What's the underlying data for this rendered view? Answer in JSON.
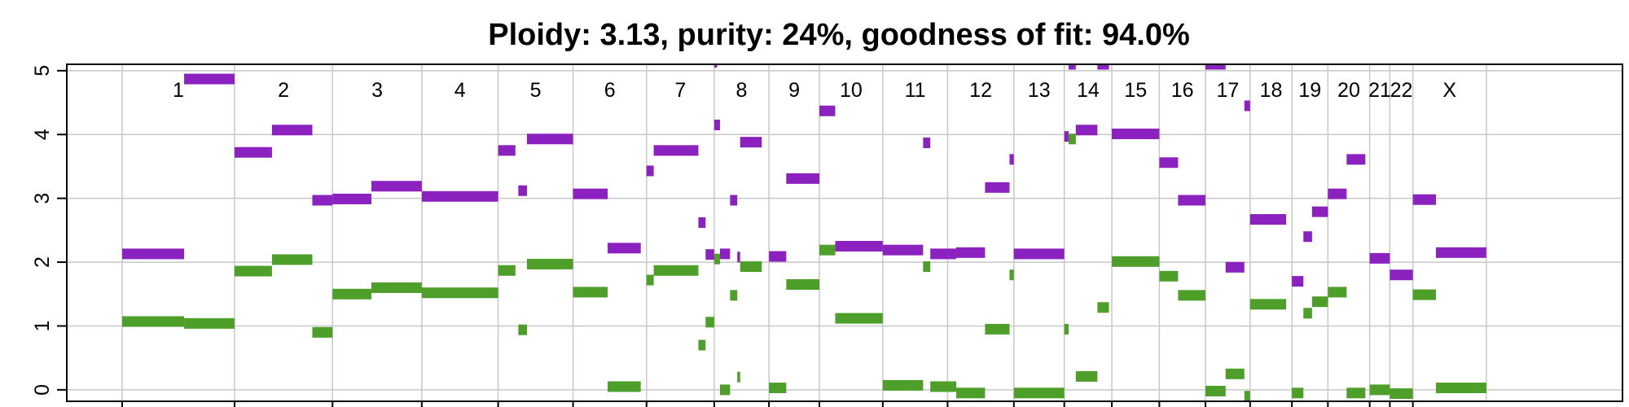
{
  "chart_data": {
    "type": "segment",
    "title": "Ploidy: 3.13, purity: 24%, goodness of fit: 94.0%",
    "xlabel": "",
    "ylabel": "",
    "ylim": [
      -0.18,
      5.1
    ],
    "y_ticks": [
      0,
      1,
      2,
      3,
      4,
      5
    ],
    "grid": true,
    "colors": {
      "major": "#8b22c0",
      "minor": "#4e9e2a",
      "grid": "#c8c8c8",
      "axis": "#000000"
    },
    "chromosomes": [
      {
        "name": "1",
        "start": 0.0,
        "end": 0.078
      },
      {
        "name": "2",
        "start": 0.078,
        "end": 0.146
      },
      {
        "name": "3",
        "start": 0.146,
        "end": 0.208
      },
      {
        "name": "4",
        "start": 0.208,
        "end": 0.261
      },
      {
        "name": "5",
        "start": 0.261,
        "end": 0.313
      },
      {
        "name": "6",
        "start": 0.313,
        "end": 0.364
      },
      {
        "name": "7",
        "start": 0.364,
        "end": 0.411
      },
      {
        "name": "8",
        "start": 0.411,
        "end": 0.449
      },
      {
        "name": "9",
        "start": 0.449,
        "end": 0.484
      },
      {
        "name": "10",
        "start": 0.484,
        "end": 0.528
      },
      {
        "name": "11",
        "start": 0.528,
        "end": 0.573
      },
      {
        "name": "12",
        "start": 0.573,
        "end": 0.619
      },
      {
        "name": "13",
        "start": 0.619,
        "end": 0.654
      },
      {
        "name": "14",
        "start": 0.654,
        "end": 0.687
      },
      {
        "name": "15",
        "start": 0.687,
        "end": 0.72
      },
      {
        "name": "16",
        "start": 0.72,
        "end": 0.752
      },
      {
        "name": "17",
        "start": 0.752,
        "end": 0.783
      },
      {
        "name": "18",
        "start": 0.783,
        "end": 0.812
      },
      {
        "name": "19",
        "start": 0.812,
        "end": 0.837
      },
      {
        "name": "20",
        "start": 0.837,
        "end": 0.866
      },
      {
        "name": "21",
        "start": 0.866,
        "end": 0.88
      },
      {
        "name": "22",
        "start": 0.88,
        "end": 0.896
      },
      {
        "name": "X",
        "start": 0.896,
        "end": 0.947
      }
    ],
    "series": [
      {
        "name": "",
        "color": "#8b22c0",
        "segments": [
          [
            0.0,
            0.043,
            2.13
          ],
          [
            0.043,
            0.078,
            4.87
          ],
          [
            0.078,
            0.104,
            3.72
          ],
          [
            0.104,
            0.132,
            4.07
          ],
          [
            0.132,
            0.146,
            2.97
          ],
          [
            0.146,
            0.173,
            2.99
          ],
          [
            0.173,
            0.208,
            3.19
          ],
          [
            0.208,
            0.261,
            3.03
          ],
          [
            0.261,
            0.273,
            3.75
          ],
          [
            0.275,
            0.281,
            3.12
          ],
          [
            0.281,
            0.313,
            3.93
          ],
          [
            0.313,
            0.337,
            3.07
          ],
          [
            0.337,
            0.36,
            2.22
          ],
          [
            0.364,
            0.369,
            3.43
          ],
          [
            0.369,
            0.4,
            3.75
          ],
          [
            0.4,
            0.405,
            2.62
          ],
          [
            0.405,
            0.411,
            2.12
          ],
          [
            0.411,
            0.413,
            5.15
          ],
          [
            0.411,
            0.415,
            4.15
          ],
          [
            0.415,
            0.422,
            2.13
          ],
          [
            0.422,
            0.427,
            2.97
          ],
          [
            0.427,
            0.429,
            2.08
          ],
          [
            0.429,
            0.444,
            3.88
          ],
          [
            0.449,
            0.461,
            2.09
          ],
          [
            0.461,
            0.484,
            3.31
          ],
          [
            0.484,
            0.495,
            4.37
          ],
          [
            0.495,
            0.528,
            2.25
          ],
          [
            0.528,
            0.556,
            2.19
          ],
          [
            0.556,
            0.561,
            3.87
          ],
          [
            0.561,
            0.573,
            2.13
          ],
          [
            0.573,
            0.579,
            2.13
          ],
          [
            0.579,
            0.599,
            2.15
          ],
          [
            0.599,
            0.616,
            3.17
          ],
          [
            0.616,
            0.619,
            3.61
          ],
          [
            0.619,
            0.654,
            2.13
          ],
          [
            0.654,
            0.657,
            3.97
          ],
          [
            0.657,
            0.662,
            5.1
          ],
          [
            0.662,
            0.677,
            4.07
          ],
          [
            0.677,
            0.685,
            5.1
          ],
          [
            0.687,
            0.72,
            4.01
          ],
          [
            0.72,
            0.733,
            3.56
          ],
          [
            0.733,
            0.752,
            2.97
          ],
          [
            0.752,
            0.766,
            5.1
          ],
          [
            0.766,
            0.779,
            1.92
          ],
          [
            0.779,
            0.783,
            4.45
          ],
          [
            0.783,
            0.808,
            2.67
          ],
          [
            0.812,
            0.82,
            1.7
          ],
          [
            0.82,
            0.826,
            2.4
          ],
          [
            0.826,
            0.837,
            2.79
          ],
          [
            0.837,
            0.85,
            3.07
          ],
          [
            0.85,
            0.863,
            3.61
          ],
          [
            0.866,
            0.88,
            2.06
          ],
          [
            0.88,
            0.896,
            1.8
          ],
          [
            0.896,
            0.912,
            2.98
          ],
          [
            0.912,
            0.947,
            2.15
          ]
        ]
      },
      {
        "name": "",
        "color": "#4e9e2a",
        "segments": [
          [
            0.0,
            0.043,
            1.07
          ],
          [
            0.043,
            0.078,
            1.04
          ],
          [
            0.078,
            0.104,
            1.86
          ],
          [
            0.104,
            0.132,
            2.04
          ],
          [
            0.132,
            0.146,
            0.9
          ],
          [
            0.146,
            0.173,
            1.5
          ],
          [
            0.173,
            0.208,
            1.6
          ],
          [
            0.208,
            0.261,
            1.52
          ],
          [
            0.261,
            0.273,
            1.87
          ],
          [
            0.275,
            0.281,
            0.94
          ],
          [
            0.281,
            0.313,
            1.97
          ],
          [
            0.313,
            0.337,
            1.53
          ],
          [
            0.337,
            0.36,
            0.05
          ],
          [
            0.364,
            0.369,
            1.72
          ],
          [
            0.369,
            0.4,
            1.87
          ],
          [
            0.4,
            0.405,
            0.7
          ],
          [
            0.405,
            0.411,
            1.06
          ],
          [
            0.411,
            0.415,
            2.05
          ],
          [
            0.415,
            0.422,
            0.0
          ],
          [
            0.422,
            0.427,
            1.48
          ],
          [
            0.427,
            0.429,
            0.2
          ],
          [
            0.429,
            0.444,
            1.93
          ],
          [
            0.449,
            0.461,
            0.03
          ],
          [
            0.461,
            0.484,
            1.65
          ],
          [
            0.484,
            0.495,
            2.19
          ],
          [
            0.495,
            0.528,
            1.12
          ],
          [
            0.528,
            0.556,
            0.07
          ],
          [
            0.556,
            0.561,
            1.93
          ],
          [
            0.561,
            0.573,
            0.05
          ],
          [
            0.573,
            0.579,
            0.05
          ],
          [
            0.579,
            0.599,
            -0.05
          ],
          [
            0.599,
            0.616,
            0.95
          ],
          [
            0.616,
            0.619,
            1.8
          ],
          [
            0.619,
            0.654,
            -0.05
          ],
          [
            0.654,
            0.657,
            0.95
          ],
          [
            0.657,
            0.662,
            3.93
          ],
          [
            0.662,
            0.677,
            0.21
          ],
          [
            0.677,
            0.685,
            1.29
          ],
          [
            0.687,
            0.72,
            2.01
          ],
          [
            0.72,
            0.733,
            1.78
          ],
          [
            0.733,
            0.752,
            1.48
          ],
          [
            0.752,
            0.766,
            -0.02
          ],
          [
            0.766,
            0.779,
            0.25
          ],
          [
            0.779,
            0.783,
            -0.1
          ],
          [
            0.783,
            0.808,
            1.34
          ],
          [
            0.812,
            0.82,
            -0.05
          ],
          [
            0.82,
            0.826,
            1.2
          ],
          [
            0.826,
            0.837,
            1.38
          ],
          [
            0.837,
            0.85,
            1.53
          ],
          [
            0.85,
            0.863,
            -0.05
          ],
          [
            0.866,
            0.88,
            0.0
          ],
          [
            0.88,
            0.896,
            -0.06
          ],
          [
            0.896,
            0.912,
            1.49
          ],
          [
            0.912,
            0.947,
            0.03
          ]
        ]
      }
    ]
  }
}
